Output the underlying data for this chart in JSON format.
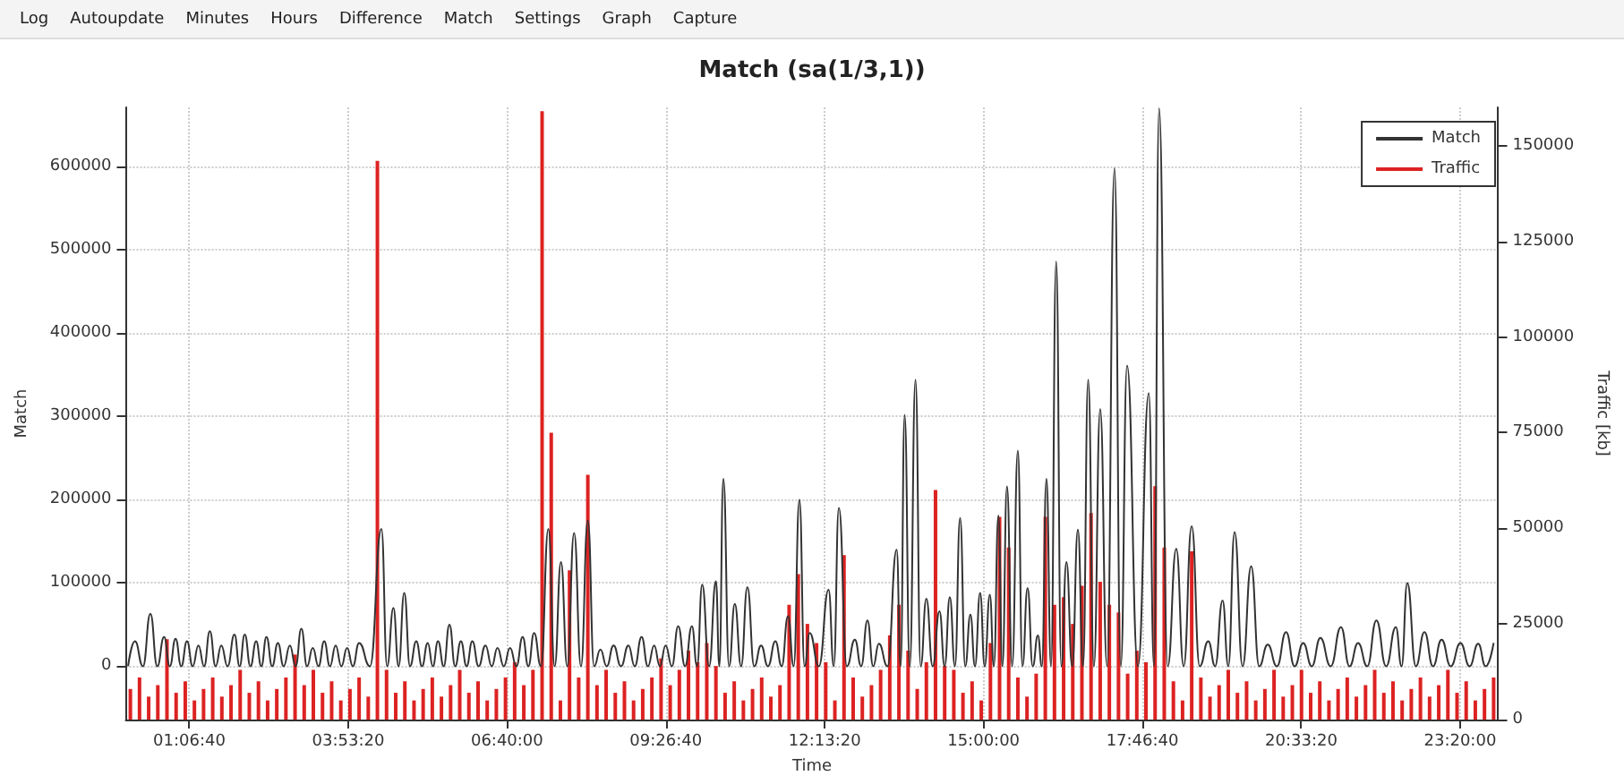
{
  "chart_data": {
    "type": "line",
    "title": "Match (sa(1/3,1))",
    "xlabel": "Time",
    "ylabel": "Match",
    "y2label": "Traffic [kb]",
    "annotations": [
      "Log",
      "Autoupdate",
      "Minutes",
      "Hours",
      "Difference",
      "Match",
      "Settings",
      "Graph",
      "Capture"
    ],
    "xlim": [
      0,
      24
    ],
    "xticks": [
      {
        "value": 1.1111,
        "label": "01:06:40"
      },
      {
        "value": 3.8889,
        "label": "03:53:20"
      },
      {
        "value": 6.6667,
        "label": "06:40:00"
      },
      {
        "value": 9.4444,
        "label": "09:26:40"
      },
      {
        "value": 12.2222,
        "label": "12:13:20"
      },
      {
        "value": 15,
        "label": "15:00:00"
      },
      {
        "value": 17.7778,
        "label": "17:46:40"
      },
      {
        "value": 20.5556,
        "label": "20:33:20"
      },
      {
        "value": 23.3333,
        "label": "23:20:00"
      }
    ],
    "ylim": [
      -64000,
      671000
    ],
    "yticks": [
      0,
      100000,
      200000,
      300000,
      400000,
      500000,
      600000
    ],
    "y2lim": [
      0,
      160000
    ],
    "y2ticks": [
      0,
      25000,
      50000,
      75000,
      100000,
      125000,
      150000
    ],
    "grid": true,
    "legend": "top right",
    "marker": "none",
    "line_style": "solid",
    "series": [
      {
        "name": "Match",
        "color": "#333333",
        "x": [
          0.04,
          0.16,
          0.3,
          0.43,
          0.55,
          0.67,
          0.77,
          0.87,
          0.97,
          1.07,
          1.17,
          1.27,
          1.37,
          1.47,
          1.57,
          1.67,
          1.78,
          1.9,
          1.99,
          2.08,
          2.18,
          2.28,
          2.37,
          2.46,
          2.56,
          2.66,
          2.76,
          2.87,
          2.97,
          3.07,
          3.17,
          3.27,
          3.37,
          3.47,
          3.57,
          3.67,
          3.77,
          3.87,
          3.97,
          4.08,
          4.27,
          4.47,
          4.57,
          4.68,
          4.77,
          4.87,
          4.97,
          5.08,
          5.18,
          5.28,
          5.37,
          5.46,
          5.56,
          5.66,
          5.76,
          5.86,
          5.96,
          6.06,
          6.17,
          6.29,
          6.4,
          6.5,
          6.61,
          6.72,
          6.83,
          6.94,
          7.04,
          7.14,
          7.26,
          7.39,
          7.5,
          7.61,
          7.72,
          7.84,
          7.96,
          8.08,
          8.19,
          8.3,
          8.41,
          8.53,
          8.66,
          8.79,
          8.9,
          9.02,
          9.13,
          9.24,
          9.34,
          9.44,
          9.55,
          9.66,
          9.78,
          9.9,
          9.99,
          10.08,
          10.2,
          10.32,
          10.38,
          10.45,
          10.55,
          10.65,
          10.76,
          10.87,
          10.99,
          11.11,
          11.23,
          11.36,
          11.47,
          11.58,
          11.68,
          11.78,
          11.87,
          11.96,
          12.12,
          12.29,
          12.38,
          12.47,
          12.61,
          12.75,
          12.86,
          12.97,
          13.07,
          13.17,
          13.32,
          13.48,
          13.55,
          13.62,
          13.71,
          13.81,
          13.9,
          14,
          14.11,
          14.23,
          14.32,
          14.41,
          14.5,
          14.59,
          14.68,
          14.77,
          14.85,
          14.94,
          15.02,
          15.11,
          15.18,
          15.26,
          15.33,
          15.41,
          15.5,
          15.6,
          15.68,
          15.77,
          15.86,
          15.95,
          16.02,
          16.1,
          16.18,
          16.27,
          16.36,
          16.45,
          16.55,
          16.65,
          16.74,
          16.83,
          16.93,
          17.04,
          17.16,
          17.29,
          17.4,
          17.51,
          17.7,
          17.89,
          17.98,
          18.07,
          18.22,
          18.37,
          18.5,
          18.64,
          18.78,
          18.93,
          19.05,
          19.18,
          19.28,
          19.39,
          19.53,
          19.68,
          19.82,
          19.97,
          20.13,
          20.29,
          20.44,
          20.59,
          20.74,
          20.89,
          21.07,
          21.25,
          21.4,
          21.55,
          21.71,
          21.87,
          22.04,
          22.21,
          22.31,
          22.41,
          22.56,
          22.71,
          22.86,
          23.01,
          23.17,
          23.34,
          23.5,
          23.65,
          23.78,
          23.92
        ],
        "values": [
          0,
          30000,
          0,
          63000,
          0,
          35000,
          0,
          33000,
          0,
          30000,
          0,
          25000,
          0,
          42000,
          0,
          25000,
          0,
          38000,
          0,
          38000,
          0,
          30000,
          0,
          35000,
          0,
          28000,
          0,
          25000,
          0,
          45000,
          0,
          22000,
          0,
          30000,
          0,
          25000,
          0,
          22000,
          0,
          28000,
          0,
          165000,
          0,
          70000,
          0,
          88000,
          0,
          30000,
          0,
          28000,
          0,
          30000,
          0,
          50000,
          0,
          30000,
          0,
          30000,
          0,
          25000,
          0,
          22000,
          0,
          22000,
          0,
          35000,
          0,
          40000,
          0,
          165000,
          0,
          125000,
          0,
          160000,
          0,
          175000,
          0,
          20000,
          0,
          25000,
          0,
          25000,
          0,
          35000,
          0,
          25000,
          0,
          25000,
          0,
          48000,
          0,
          48000,
          0,
          98000,
          0,
          102000,
          0,
          225000,
          0,
          75000,
          0,
          95000,
          0,
          25000,
          0,
          30000,
          0,
          60000,
          0,
          200000,
          0,
          40000,
          0,
          92000,
          0,
          190000,
          0,
          32000,
          0,
          55000,
          0,
          27000,
          0,
          140000,
          0,
          302000,
          0,
          344000,
          0,
          81000,
          0,
          66000,
          0,
          83000,
          0,
          178000,
          0,
          62000,
          0,
          88000,
          0,
          86000,
          0,
          181000,
          0,
          216000,
          0,
          259000,
          0,
          94000,
          0,
          37000,
          0,
          225000,
          0,
          486000,
          0,
          125000,
          0,
          164000,
          0,
          344000,
          0,
          309000,
          0,
          598000,
          0,
          361000,
          0,
          328000,
          0,
          670000,
          0,
          141000,
          0,
          168000,
          0,
          30000,
          0,
          79000,
          0,
          161000,
          0,
          120000,
          0,
          26000,
          0,
          41000,
          0,
          28000,
          0,
          34000,
          0,
          47000,
          0,
          28000,
          0,
          55000,
          0,
          47000,
          0,
          100000,
          0,
          41000,
          0,
          32000,
          0,
          28000,
          0,
          27000,
          0,
          28000
        ]
      },
      {
        "name": "Traffic",
        "type": "bar",
        "axis": "y2",
        "color": "#dd2222",
        "x": [
          0.08,
          0.24,
          0.4,
          0.56,
          0.72,
          0.88,
          1.04,
          1.2,
          1.36,
          1.52,
          1.68,
          1.84,
          2,
          2.16,
          2.32,
          2.48,
          2.64,
          2.8,
          2.96,
          3.12,
          3.28,
          3.44,
          3.6,
          3.76,
          3.92,
          4.08,
          4.24,
          4.4,
          4.56,
          4.72,
          4.88,
          5.04,
          5.2,
          5.36,
          5.52,
          5.68,
          5.84,
          6,
          6.16,
          6.32,
          6.48,
          6.64,
          6.8,
          6.96,
          7.12,
          7.28,
          7.44,
          7.6,
          7.76,
          7.92,
          8.08,
          8.24,
          8.4,
          8.56,
          8.72,
          8.88,
          9.04,
          9.2,
          9.36,
          9.52,
          9.68,
          9.84,
          10,
          10.16,
          10.32,
          10.48,
          10.64,
          10.8,
          10.96,
          11.12,
          11.28,
          11.44,
          11.6,
          11.76,
          11.92,
          12.08,
          12.24,
          12.4,
          12.56,
          12.72,
          12.88,
          13.04,
          13.2,
          13.36,
          13.52,
          13.68,
          13.84,
          14,
          14.16,
          14.32,
          14.48,
          14.64,
          14.8,
          14.96,
          15.12,
          15.28,
          15.44,
          15.6,
          15.76,
          15.92,
          16.08,
          16.24,
          16.4,
          16.56,
          16.72,
          16.88,
          17.04,
          17.2,
          17.36,
          17.52,
          17.68,
          17.84,
          18,
          18.16,
          18.32,
          18.48,
          18.64,
          18.8,
          18.96,
          19.12,
          19.28,
          19.44,
          19.6,
          19.76,
          19.92,
          20.08,
          20.24,
          20.4,
          20.56,
          20.72,
          20.88,
          21.04,
          21.2,
          21.36,
          21.52,
          21.68,
          21.84,
          22,
          22.16,
          22.32,
          22.48,
          22.64,
          22.8,
          22.96,
          23.12,
          23.28,
          23.44,
          23.6,
          23.76,
          23.92
        ],
        "values": [
          8000,
          11000,
          6000,
          9000,
          21000,
          7000,
          10000,
          5000,
          8000,
          11000,
          6000,
          9000,
          13000,
          7000,
          10000,
          5000,
          8000,
          11000,
          17000,
          9000,
          13000,
          7000,
          10000,
          5000,
          8000,
          11000,
          6000,
          146000,
          13000,
          7000,
          10000,
          5000,
          8000,
          11000,
          6000,
          9000,
          13000,
          7000,
          10000,
          5000,
          8000,
          11000,
          15000,
          9000,
          13000,
          159000,
          75000,
          5000,
          39000,
          11000,
          64000,
          9000,
          13000,
          7000,
          10000,
          5000,
          8000,
          11000,
          16000,
          9000,
          13000,
          18000,
          15000,
          20000,
          14000,
          7000,
          10000,
          5000,
          8000,
          11000,
          6000,
          9000,
          30000,
          38000,
          25000,
          20000,
          15000,
          5000,
          43000,
          11000,
          6000,
          9000,
          13000,
          22000,
          30000,
          18000,
          8000,
          15000,
          60000,
          14000,
          13000,
          7000,
          10000,
          5000,
          20000,
          53000,
          45000,
          11000,
          6000,
          12000,
          53000,
          30000,
          32000,
          25000,
          35000,
          54000,
          36000,
          30000,
          28000,
          12000,
          18000,
          15000,
          61000,
          45000,
          10000,
          5000,
          44000,
          11000,
          6000,
          9000,
          13000,
          7000,
          10000,
          5000,
          8000,
          13000,
          6000,
          9000,
          13000,
          7000,
          10000,
          5000,
          8000,
          11000,
          6000,
          9000,
          13000,
          7000,
          10000,
          5000,
          8000,
          11000,
          6000,
          9000,
          13000,
          7000,
          10000,
          5000,
          8000,
          11000
        ]
      }
    ]
  }
}
